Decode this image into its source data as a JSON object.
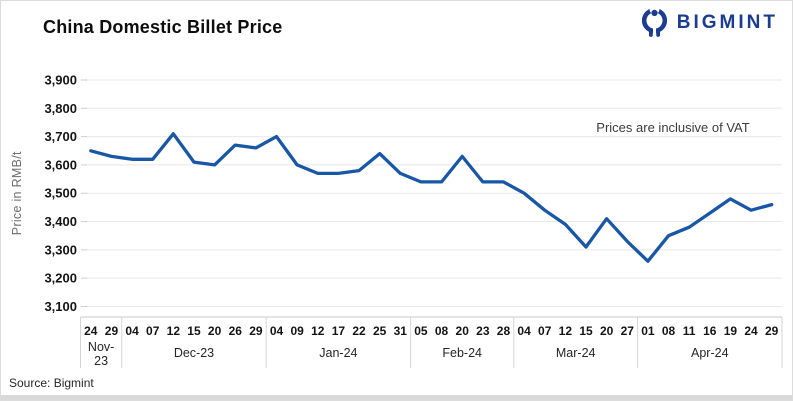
{
  "header": {
    "title": "China Domestic Billet Price",
    "brand": "BIGMINT"
  },
  "source": "Source: Bigmint",
  "chart_data": {
    "type": "line",
    "title": "China Domestic Billet Price",
    "ylabel": "Price in RMB/t",
    "ylim": [
      3100,
      3900
    ],
    "ytick_interval": 100,
    "yticks": [
      "3,100",
      "3,200",
      "3,300",
      "3,400",
      "3,500",
      "3,600",
      "3,700",
      "3,800",
      "3,900"
    ],
    "grid": true,
    "legend_position": "none",
    "annotation": "Prices are inclusive of VAT",
    "line_color": "#1857A6",
    "months": [
      {
        "label": "Nov-23",
        "wrap": true,
        "days": [
          "24",
          "29"
        ]
      },
      {
        "label": "Dec-23",
        "wrap": false,
        "days": [
          "04",
          "07",
          "12",
          "15",
          "20",
          "26",
          "29"
        ]
      },
      {
        "label": "Jan-24",
        "wrap": false,
        "days": [
          "04",
          "09",
          "12",
          "17",
          "22",
          "25",
          "31"
        ]
      },
      {
        "label": "Feb-24",
        "wrap": false,
        "days": [
          "05",
          "08",
          "20",
          "23",
          "28"
        ]
      },
      {
        "label": "Mar-24",
        "wrap": false,
        "days": [
          "04",
          "07",
          "12",
          "15",
          "20",
          "27"
        ]
      },
      {
        "label": "Apr-24",
        "wrap": false,
        "days": [
          "01",
          "08",
          "11",
          "16",
          "19",
          "24",
          "29"
        ]
      }
    ],
    "series": [
      {
        "name": "China Domestic Billet Price",
        "values": [
          3650,
          3630,
          3620,
          3620,
          3710,
          3610,
          3600,
          3670,
          3660,
          3700,
          3600,
          3570,
          3570,
          3580,
          3640,
          3570,
          3540,
          3540,
          3630,
          3540,
          3540,
          3500,
          3440,
          3390,
          3310,
          3410,
          3330,
          3260,
          3350,
          3380,
          3430,
          3480,
          3440,
          3460
        ]
      }
    ]
  }
}
